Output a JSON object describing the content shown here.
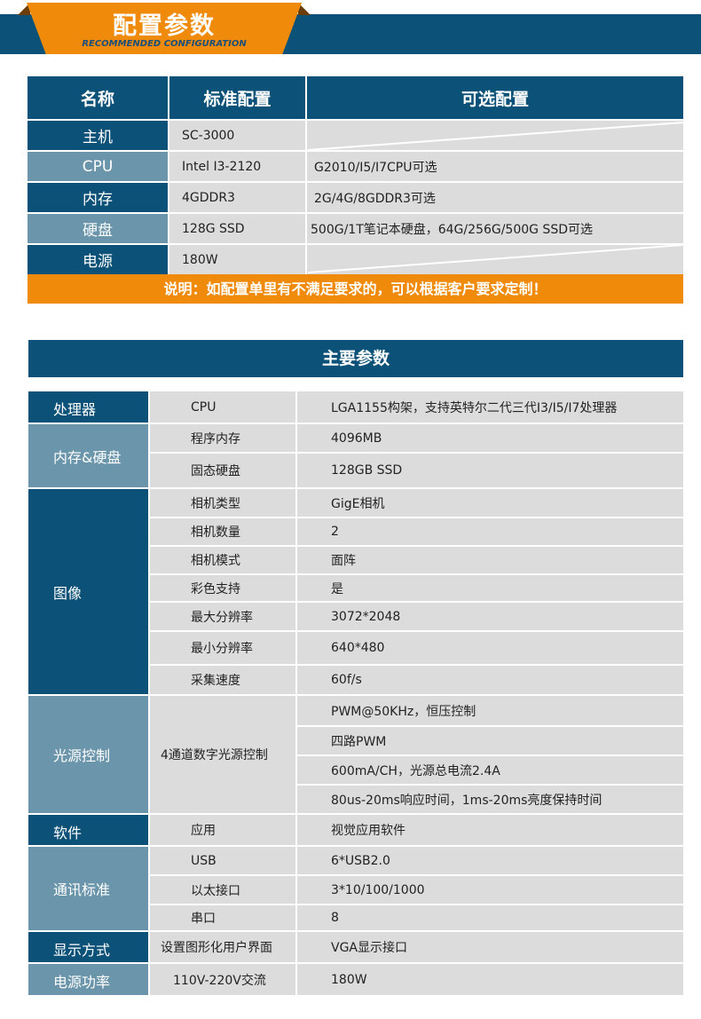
{
  "banner": {
    "title": "配置参数",
    "subtitle": "RECOMMENDED CONFIGURATION"
  },
  "config": {
    "headers": [
      "名称",
      "标准配置",
      "可选配置"
    ],
    "rows": [
      {
        "name": "主机",
        "standard": "SC-3000",
        "optional": ""
      },
      {
        "name": "CPU",
        "standard": "Intel I3-2120",
        "optional": "G2010/I5/I7CPU可选"
      },
      {
        "name": "内存",
        "standard": "4GDDR3",
        "optional": "2G/4G/8GDDR3可选"
      },
      {
        "name": "硬盘",
        "standard": "128G SSD",
        "optional": "500G/1T笔记本硬盘，64G/256G/500G SSD可选"
      },
      {
        "name": "电源",
        "standard": "180W",
        "optional": ""
      }
    ],
    "note": "说明：如配置单里有不满足要求的，可以根据客户要求定制！"
  },
  "params": {
    "title": "主要参数",
    "groups": [
      {
        "name": "处理器",
        "rows": [
          [
            "CPU",
            "LGA1155构架，支持英特尔二代三代I3/I5/I7处理器"
          ]
        ]
      },
      {
        "name": "内存&硬盘",
        "rows": [
          [
            "程序内存",
            "4096MB"
          ],
          [
            "固态硬盘",
            "128GB SSD"
          ]
        ]
      },
      {
        "name": "图像",
        "rows": [
          [
            "相机类型",
            "GigE相机"
          ],
          [
            "相机数量",
            "2"
          ],
          [
            "相机模式",
            "面阵"
          ],
          [
            "彩色支持",
            "是"
          ],
          [
            "最大分辨率",
            "3072*2048"
          ],
          [
            "最小分辨率",
            "640*480"
          ],
          [
            "采集速度",
            "60f/s"
          ]
        ]
      },
      {
        "name": "光源控制",
        "sub": "4通道数字光源控制",
        "rows": [
          [
            "",
            "PWM@50KHz，恒压控制"
          ],
          [
            "",
            "四路PWM"
          ],
          [
            "",
            "600mA/CH，光源总电流2.4A"
          ],
          [
            "",
            "80us-20ms响应时间，1ms-20ms亮度保持时间"
          ]
        ]
      },
      {
        "name": "软件",
        "rows": [
          [
            "应用",
            "视觉应用软件"
          ]
        ]
      },
      {
        "name": "通讯标准",
        "rows": [
          [
            "USB",
            "6*USB2.0"
          ],
          [
            "以太接口",
            "3*10/100/1000"
          ],
          [
            "串口",
            "8"
          ]
        ]
      },
      {
        "name": "显示方式",
        "rows": [
          [
            "设置图形化用户界面",
            "VGA显示接口"
          ]
        ]
      },
      {
        "name": "电源功率",
        "rows": [
          [
            "110V-220V交流",
            "180W"
          ]
        ]
      }
    ]
  }
}
